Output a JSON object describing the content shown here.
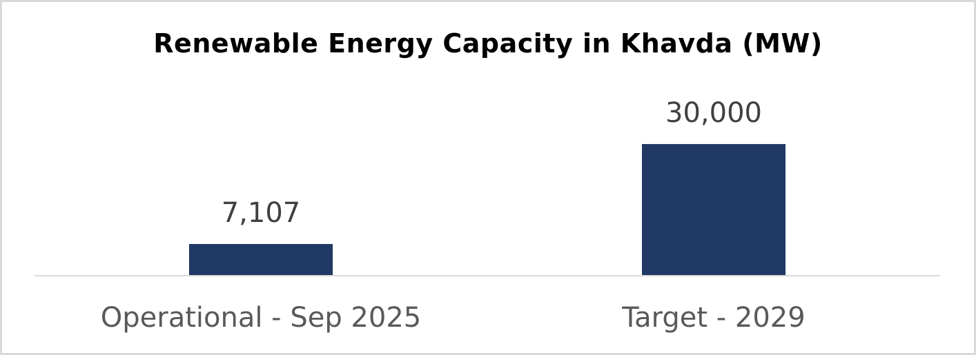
{
  "chart_data": {
    "type": "bar",
    "title": "Renewable Energy Capacity in Khavda (MW)",
    "categories": [
      "Operational - Sep 2025",
      "Target - 2029"
    ],
    "values": [
      7107,
      30000
    ],
    "data_labels": [
      "7,107",
      "30,000"
    ],
    "xlabel": "",
    "ylabel": "",
    "ylim": [
      0,
      35000
    ],
    "grid": false,
    "legend": "none",
    "bar_color": "#203864",
    "axis_color": "#d9d9d9"
  }
}
